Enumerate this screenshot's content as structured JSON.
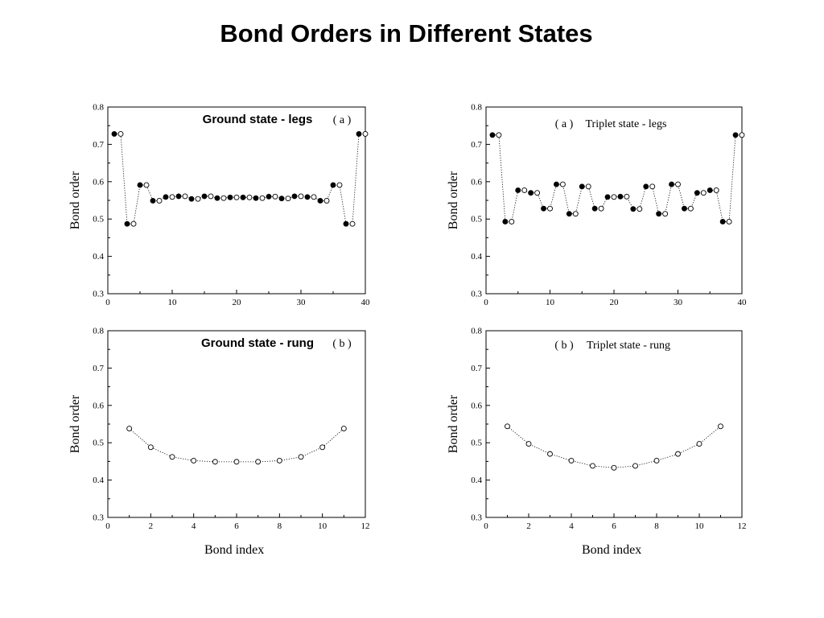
{
  "page": {
    "title": "Bond Orders in Different States"
  },
  "chart_data": [
    {
      "type": "scatter",
      "panel": "top-left",
      "title": "Ground state - legs",
      "panel_tag": "( a )",
      "xlabel": "",
      "ylabel": "Bond order",
      "xlim": [
        0,
        40
      ],
      "ylim": [
        0.3,
        0.8
      ],
      "xticks": [
        "0",
        "10",
        "20",
        "30",
        "40"
      ],
      "yticks": [
        "0.3",
        "0.4",
        "0.5",
        "0.6",
        "0.7",
        "0.8"
      ],
      "series": [
        {
          "marker": "filled",
          "x": [
            1,
            3,
            5,
            7,
            9,
            11,
            13,
            15,
            17,
            19,
            21,
            23,
            25,
            27,
            29,
            31,
            33,
            35,
            37,
            39
          ],
          "y": [
            0.728,
            0.487,
            0.591,
            0.549,
            0.559,
            0.561,
            0.554,
            0.561,
            0.556,
            0.558,
            0.558,
            0.556,
            0.56,
            0.555,
            0.561,
            0.559,
            0.549,
            0.591,
            0.487,
            0.728
          ]
        },
        {
          "marker": "open",
          "x": [
            2,
            4,
            6,
            8,
            10,
            12,
            14,
            16,
            18,
            20,
            22,
            24,
            26,
            28,
            30,
            32,
            34,
            36,
            38,
            40
          ],
          "y": [
            0.728,
            0.487,
            0.591,
            0.549,
            0.559,
            0.561,
            0.554,
            0.561,
            0.556,
            0.558,
            0.558,
            0.556,
            0.56,
            0.555,
            0.561,
            0.559,
            0.549,
            0.591,
            0.487,
            0.728
          ]
        }
      ]
    },
    {
      "type": "scatter",
      "panel": "top-right",
      "title": "Triplet state - legs",
      "panel_tag": "( a )",
      "xlabel": "",
      "ylabel": "Bond order",
      "xlim": [
        0,
        40
      ],
      "ylim": [
        0.3,
        0.8
      ],
      "xticks": [
        "0",
        "10",
        "20",
        "30",
        "40"
      ],
      "yticks": [
        "0.3",
        "0.4",
        "0.5",
        "0.6",
        "0.7",
        "0.8"
      ],
      "series": [
        {
          "marker": "filled",
          "x": [
            1,
            3,
            5,
            7,
            9,
            11,
            13,
            15,
            17,
            19,
            21,
            23,
            25,
            27,
            29,
            31,
            33,
            35,
            37,
            39
          ],
          "y": [
            0.725,
            0.493,
            0.577,
            0.57,
            0.528,
            0.593,
            0.514,
            0.587,
            0.528,
            0.559,
            0.56,
            0.527,
            0.587,
            0.514,
            0.593,
            0.528,
            0.57,
            0.577,
            0.493,
            0.725
          ]
        },
        {
          "marker": "open",
          "x": [
            2,
            4,
            6,
            8,
            10,
            12,
            14,
            16,
            18,
            20,
            22,
            24,
            26,
            28,
            30,
            32,
            34,
            36,
            38,
            40
          ],
          "y": [
            0.725,
            0.493,
            0.577,
            0.57,
            0.528,
            0.593,
            0.514,
            0.587,
            0.528,
            0.559,
            0.56,
            0.527,
            0.587,
            0.514,
            0.593,
            0.528,
            0.57,
            0.577,
            0.493,
            0.725
          ]
        }
      ]
    },
    {
      "type": "scatter",
      "panel": "bottom-left",
      "title": "Ground state - rung",
      "panel_tag": "( b )",
      "xlabel": "Bond index",
      "ylabel": "Bond order",
      "xlim": [
        0,
        12
      ],
      "ylim": [
        0.3,
        0.8
      ],
      "xticks": [
        "0",
        "2",
        "4",
        "6",
        "8",
        "10",
        "12"
      ],
      "yticks": [
        "0.3",
        "0.4",
        "0.5",
        "0.6",
        "0.7",
        "0.8"
      ],
      "series": [
        {
          "marker": "open",
          "x": [
            1,
            2,
            3,
            4,
            5,
            6,
            7,
            8,
            9,
            10,
            11
          ],
          "y": [
            0.538,
            0.488,
            0.462,
            0.452,
            0.449,
            0.449,
            0.449,
            0.452,
            0.462,
            0.488,
            0.538
          ]
        }
      ]
    },
    {
      "type": "scatter",
      "panel": "bottom-right",
      "title": "Triplet state - rung",
      "panel_tag": "( b )",
      "xlabel": "Bond index",
      "ylabel": "Bond order",
      "xlim": [
        0,
        12
      ],
      "ylim": [
        0.3,
        0.8
      ],
      "xticks": [
        "0",
        "2",
        "4",
        "6",
        "8",
        "10",
        "12"
      ],
      "yticks": [
        "0.3",
        "0.4",
        "0.5",
        "0.6",
        "0.7",
        "0.8"
      ],
      "series": [
        {
          "marker": "open",
          "x": [
            1,
            2,
            3,
            4,
            5,
            6,
            7,
            8,
            9,
            10,
            11
          ],
          "y": [
            0.544,
            0.497,
            0.47,
            0.452,
            0.438,
            0.433,
            0.438,
            0.452,
            0.47,
            0.497,
            0.544
          ]
        }
      ]
    }
  ]
}
